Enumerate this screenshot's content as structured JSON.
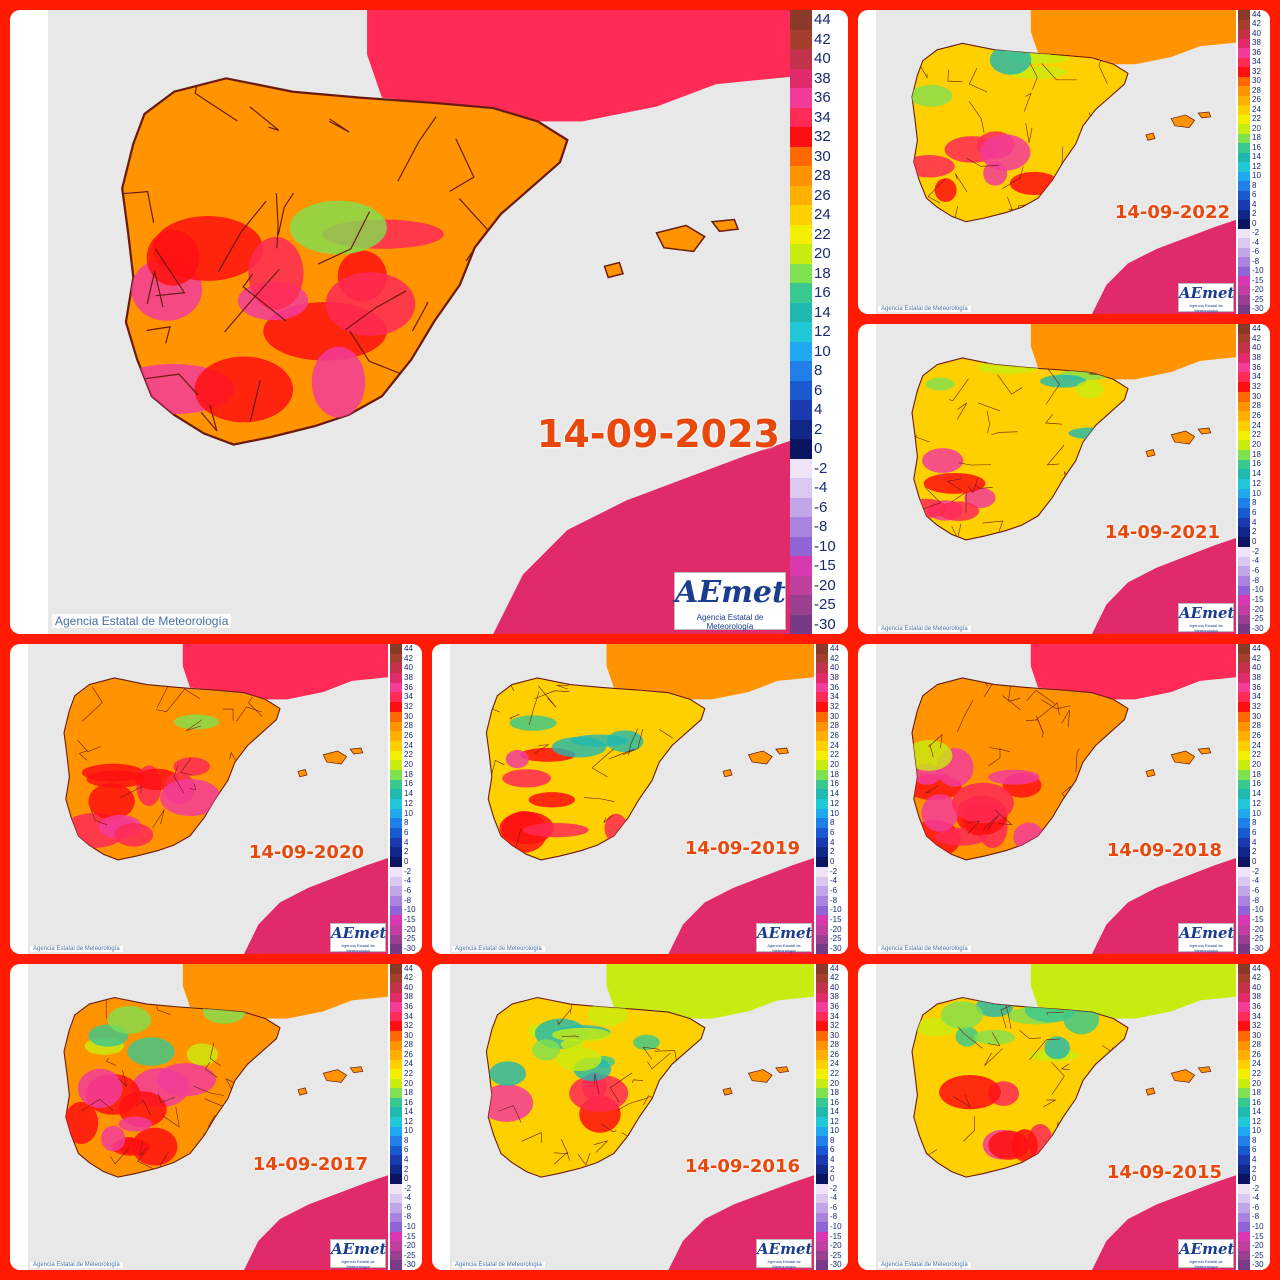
{
  "panels": [
    {
      "key": "p2023",
      "date": "14-09-2023",
      "warm": 0.85,
      "cool": 0.05
    },
    {
      "key": "p2022",
      "date": "14-09-2022",
      "warm": 0.5,
      "cool": 0.3
    },
    {
      "key": "p2021",
      "date": "14-09-2021",
      "warm": 0.4,
      "cool": 0.4
    },
    {
      "key": "p2020",
      "date": "14-09-2020",
      "warm": 0.85,
      "cool": 0.05
    },
    {
      "key": "p2019",
      "date": "14-09-2019",
      "warm": 0.55,
      "cool": 0.25
    },
    {
      "key": "p2018",
      "date": "14-09-2018",
      "warm": 0.95,
      "cool": 0.05
    },
    {
      "key": "p2017",
      "date": "14-09-2017",
      "warm": 0.8,
      "cool": 0.35
    },
    {
      "key": "p2016",
      "date": "14-09-2016",
      "warm": 0.3,
      "cool": 0.75
    },
    {
      "key": "p2015",
      "date": "14-09-2015",
      "warm": 0.4,
      "cool": 0.6
    }
  ],
  "copyright": "Agencia Estatal de Meteorología",
  "logo": {
    "mark": "AEmet",
    "sub": "Agencia Estatal de Meteorología"
  },
  "scale": {
    "labels": [
      "44",
      "42",
      "40",
      "38",
      "36",
      "34",
      "32",
      "30",
      "28",
      "26",
      "24",
      "22",
      "20",
      "18",
      "16",
      "14",
      "12",
      "10",
      "8",
      "6",
      "4",
      "2",
      "0",
      "-2",
      "-4",
      "-6",
      "-8",
      "-10",
      "-15",
      "-20",
      "-25",
      "-30"
    ],
    "colors": [
      "#8b3a2a",
      "#a33f2c",
      "#c2334b",
      "#e02a6a",
      "#f23c9a",
      "#ff2a55",
      "#ff1010",
      "#ff6a00",
      "#ff9400",
      "#ffb000",
      "#ffd000",
      "#f4ee00",
      "#c8ec10",
      "#7fe050",
      "#38c890",
      "#20b8b0",
      "#20c8d8",
      "#20a8f0",
      "#2080e8",
      "#1a5ad0",
      "#1a3ab0",
      "#122888",
      "#0a1460",
      "#efe4f6",
      "#dac8f0",
      "#c2a6ea",
      "#a884e0",
      "#9064d4",
      "#d838b0",
      "#c040a0",
      "#9a4090",
      "#7a3a8a"
    ]
  },
  "colors": {
    "frame": "#ff1a00",
    "sea": "#e8e8e8",
    "date": "#e8480c"
  }
}
